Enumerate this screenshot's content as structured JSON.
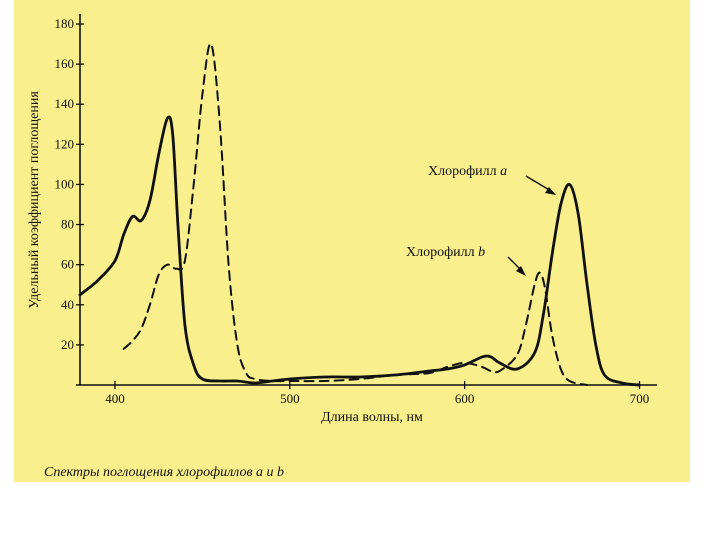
{
  "chart_data": {
    "type": "line",
    "title": "",
    "caption": "Спектры поглощения хлорофиллов a и b",
    "xlabel": "Длина волны, нм",
    "ylabel": "Удельный коэффициент поглощения",
    "xlim": [
      380,
      710
    ],
    "ylim": [
      0,
      185
    ],
    "xticks": [
      400,
      500,
      600,
      700
    ],
    "yticks": [
      20,
      40,
      60,
      80,
      100,
      120,
      140,
      160,
      180
    ],
    "grid": false,
    "series": [
      {
        "name": "Хлорофилл a",
        "style": "solid",
        "x": [
          380,
          390,
          400,
          405,
          410,
          415,
          420,
          425,
          430,
          433,
          436,
          440,
          445,
          450,
          460,
          470,
          480,
          490,
          500,
          520,
          540,
          560,
          580,
          590,
          600,
          610,
          615,
          620,
          630,
          640,
          645,
          650,
          655,
          660,
          665,
          670,
          675,
          680,
          690,
          700
        ],
        "y": [
          45,
          52,
          62,
          75,
          84,
          82,
          92,
          115,
          133,
          125,
          80,
          30,
          10,
          3,
          2,
          2,
          1,
          2,
          3,
          4,
          4,
          5,
          7,
          8,
          10,
          14,
          14,
          11,
          8,
          16,
          35,
          65,
          90,
          100,
          85,
          50,
          20,
          5,
          1,
          0
        ]
      },
      {
        "name": "Хлорофилл b",
        "style": "dashed",
        "x": [
          405,
          410,
          415,
          420,
          425,
          430,
          435,
          440,
          445,
          450,
          455,
          460,
          465,
          470,
          475,
          480,
          490,
          500,
          520,
          540,
          560,
          580,
          590,
          600,
          610,
          615,
          620,
          630,
          635,
          640,
          643,
          646,
          650,
          655,
          660,
          670
        ],
        "y": [
          18,
          22,
          28,
          40,
          55,
          60,
          58,
          62,
          100,
          145,
          170,
          130,
          60,
          20,
          6,
          3,
          2,
          2,
          2,
          3,
          5,
          6,
          9,
          11,
          9,
          7,
          7,
          15,
          30,
          50,
          56,
          48,
          25,
          8,
          2,
          0
        ]
      }
    ],
    "annotations": [
      {
        "text": "Хлорофилл",
        "italic_part": "a",
        "points_to": "Хлорофилл a"
      },
      {
        "text": "Хлорофилл",
        "italic_part": "b",
        "points_to": "Хлорофилл b"
      }
    ]
  }
}
